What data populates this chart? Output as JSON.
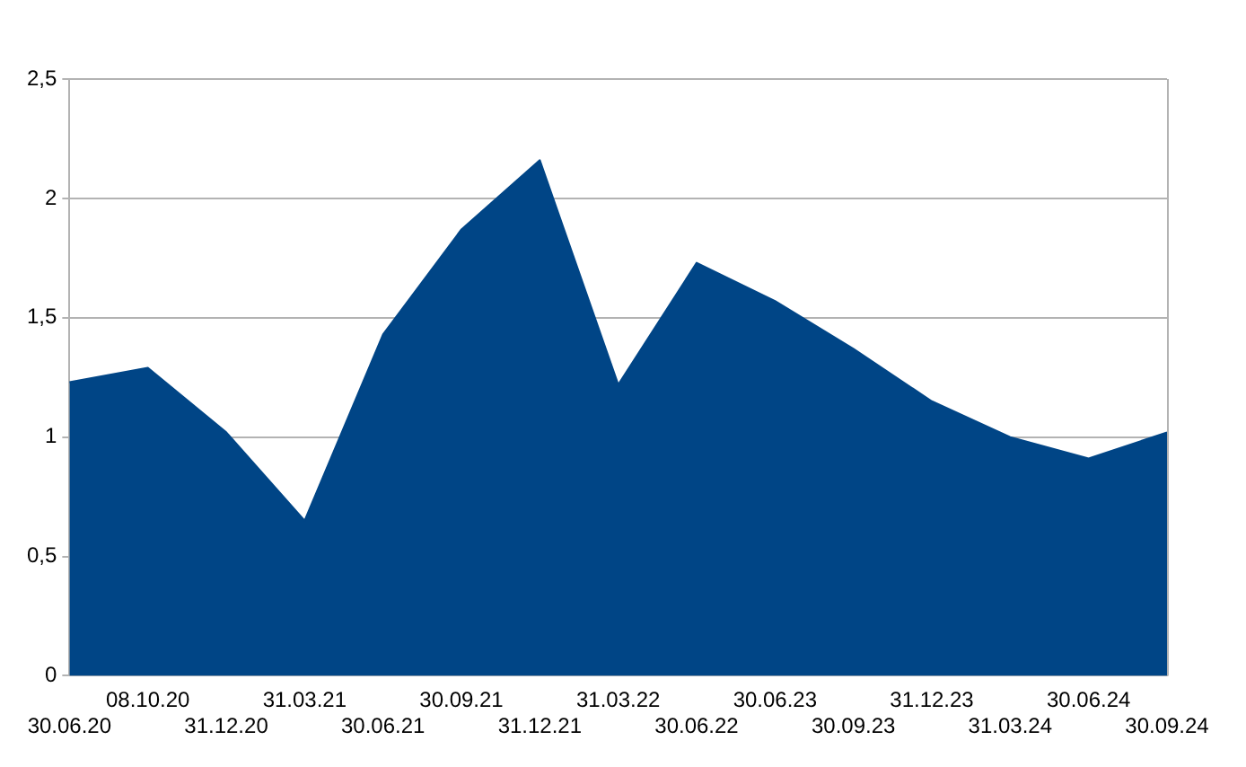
{
  "chart_data": {
    "type": "area",
    "categories": [
      "30.06.20",
      "08.10.20",
      "31.12.20",
      "31.03.21",
      "30.06.21",
      "30.09.21",
      "31.12.21",
      "31.03.22",
      "30.06.22",
      "30.06.23",
      "30.09.23",
      "31.12.23",
      "31.03.24",
      "30.06.24",
      "30.09.24"
    ],
    "series": [
      {
        "color": "#004586",
        "values": [
          1.23,
          1.29,
          1.02,
          0.65,
          1.43,
          1.87,
          2.16,
          1.22,
          1.73,
          1.57,
          1.37,
          1.15,
          1.0,
          0.91,
          1.02
        ]
      }
    ],
    "ylim": [
      0,
      2.5
    ],
    "yticks": [
      0,
      {
        "value": 0.5,
        "label": "0,5"
      },
      1,
      {
        "value": 1.5,
        "label": "1,5"
      },
      2,
      {
        "value": 2.5,
        "label": "2,5"
      }
    ],
    "grid": "y",
    "legend": false,
    "marker": "none"
  }
}
